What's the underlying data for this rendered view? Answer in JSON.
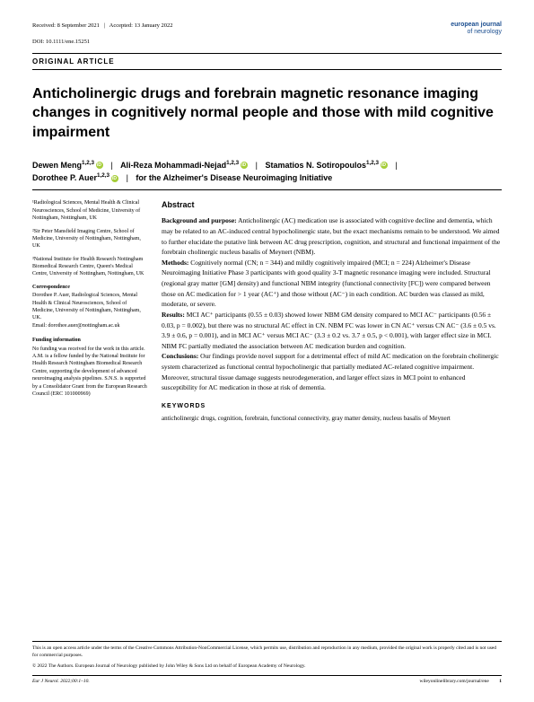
{
  "header": {
    "received": "Received: 8 September 2021",
    "accepted": "Accepted: 13 January 2022",
    "doi": "DOI: 10.1111/ene.15251",
    "brand_top": "european journal",
    "brand_bottom": "of neurology"
  },
  "article_type": "ORIGINAL ARTICLE",
  "title": "Anticholinergic drugs and forebrain magnetic resonance imaging changes in cognitively normal people and those with mild cognitive impairment",
  "authors": {
    "a1": "Dewen Meng",
    "a1_sup": "1,2,3",
    "a2": "Ali-Reza Mohammadi-Nejad",
    "a2_sup": "1,2,3",
    "a3": "Stamatios N. Sotiropoulos",
    "a3_sup": "1,2,3",
    "a4": "Dorothee P. Auer",
    "a4_sup": "1,2,3",
    "group": "for the Alzheimer's Disease Neuroimaging Initiative"
  },
  "affiliations": {
    "a1": "¹Radiological Sciences, Mental Health & Clinical Neurosciences, School of Medicine, University of Nottingham, Nottingham, UK",
    "a2": "²Sir Peter Mansfield Imaging Centre, School of Medicine, University of Nottingham, Nottingham, UK",
    "a3": "³National Institute for Health Research Nottingham Biomedical Research Centre, Queen's Medical Centre, University of Nottingham, Nottingham, UK"
  },
  "correspondence": {
    "head": "Correspondence",
    "body": "Dorothee P. Auer, Radiological Sciences, Mental Health & Clinical Neurosciences, School of Medicine, University of Nottingham, Nottingham, UK.",
    "email": "Email: dorothee.auer@nottingham.ac.uk"
  },
  "funding": {
    "head": "Funding information",
    "body": "No funding was received for the work in this article. A.M. is a fellow funded by the National Institute for Health Research Nottingham Biomedical Research Centre, supporting the development of advanced neuroimaging analysis pipelines. S.N.S. is supported by a Consolidator Grant from the European Research Council (ERC 101000969)"
  },
  "abstract": {
    "head": "Abstract",
    "bg_label": "Background and purpose:",
    "bg": " Anticholinergic (AC) medication use is associated with cognitive decline and dementia, which may be related to an AC-induced central hypocholinergic state, but the exact mechanisms remain to be understood. We aimed to further elucidate the putative link between AC drug prescription, cognition, and structural and functional impairment of the forebrain cholinergic nucleus basalis of Meynert (NBM).",
    "methods_label": "Methods:",
    "methods": " Cognitively normal (CN; n = 344) and mildly cognitively impaired (MCI; n = 224) Alzheimer's Disease Neuroimaging Initiative Phase 3 participants with good quality 3-T magnetic resonance imaging were included. Structural (regional gray matter [GM] density) and functional NBM integrity (functional connectivity [FC]) were compared between those on AC medication for > 1 year (AC⁺) and those without (AC⁻) in each condition. AC burden was classed as mild, moderate, or severe.",
    "results_label": "Results:",
    "results": " MCI AC⁺ participants (0.55 ± 0.03) showed lower NBM GM density compared to MCI AC⁻ participants (0.56 ± 0.03, p = 0.002), but there was no structural AC effect in CN. NBM FC was lower in CN AC⁺ versus CN AC⁻ (3.6 ± 0.5 vs. 3.9 ± 0.6, p = 0.001), and in MCI AC⁺ versus MCI AC⁻ (3.3 ± 0.2 vs. 3.7 ± 0.5, p < 0.001), with larger effect size in MCI. NBM FC partially mediated the association between AC medication burden and cognition.",
    "conclusions_label": "Conclusions:",
    "conclusions": " Our findings provide novel support for a detrimental effect of mild AC medication on the forebrain cholinergic system characterized as functional central hypocholinergic that partially mediated AC-related cognitive impairment. Moreover, structural tissue damage suggests neurodegeneration, and larger effect sizes in MCI point to enhanced susceptibility for AC medication in those at risk of dementia."
  },
  "keywords": {
    "head": "KEYWORDS",
    "body": "anticholinergic drugs, cognition, forebrain, functional connectivity, gray matter density, nucleus basalis of Meynert"
  },
  "footer": {
    "license": "This is an open access article under the terms of the Creative Commons Attribution-NonCommercial License, which permits use, distribution and reproduction in any medium, provided the original work is properly cited and is not used for commercial purposes.",
    "copyright": "© 2022 The Authors. European Journal of Neurology published by John Wiley & Sons Ltd on behalf of European Academy of Neurology.",
    "journal": "Eur J Neurol. 2022;00:1–10.",
    "url": "wileyonlinelibrary.com/journal/ene",
    "page": "1"
  }
}
